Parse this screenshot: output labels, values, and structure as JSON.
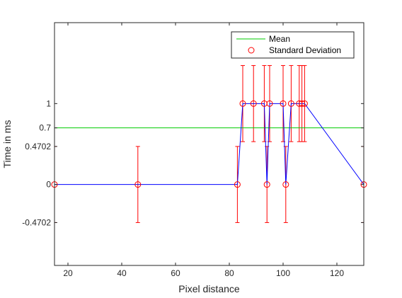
{
  "chart_data": {
    "type": "line",
    "xlabel": "Pixel distance",
    "ylabel": "Time in ms",
    "xlim": [
      15,
      130
    ],
    "ylim": [
      -1,
      2
    ],
    "xticks": [
      20,
      40,
      60,
      80,
      100,
      120
    ],
    "xtick_labels": [
      "20",
      "40",
      "60",
      "80",
      "100",
      "120"
    ],
    "yticks": [
      -0.4702,
      0,
      0.4702,
      0.7,
      1
    ],
    "ytick_labels": [
      "-0.4702",
      "0",
      "0.4702",
      "0.7",
      "1"
    ],
    "grid": false,
    "legend_position": "top-right",
    "legend": [
      {
        "label": "Mean",
        "marker": "line",
        "color": "#00cc00"
      },
      {
        "label": "Standard Deviation",
        "marker": "circle",
        "color": "#ff0000"
      }
    ],
    "series": [
      {
        "style": "line-with-markers-and-errorbars",
        "line_color": "#0000ff",
        "marker_color": "#ff0000",
        "x": [
          15,
          46,
          83,
          85,
          89,
          93,
          94,
          95,
          100,
          101,
          103,
          106,
          107,
          108,
          130
        ],
        "y": [
          0,
          0,
          0,
          1,
          1,
          1,
          0,
          1,
          1,
          0,
          1,
          1,
          1,
          1,
          0
        ],
        "error": [
          0.4702,
          0.4702,
          0.4702,
          0.4702,
          0.4702,
          0.4702,
          0.4702,
          0.4702,
          0.4702,
          0.4702,
          0.4702,
          0.4702,
          0.4702,
          0.4702,
          0.4702
        ]
      }
    ],
    "hlines": [
      {
        "y": 0.7,
        "color": "#00cc00"
      }
    ]
  }
}
